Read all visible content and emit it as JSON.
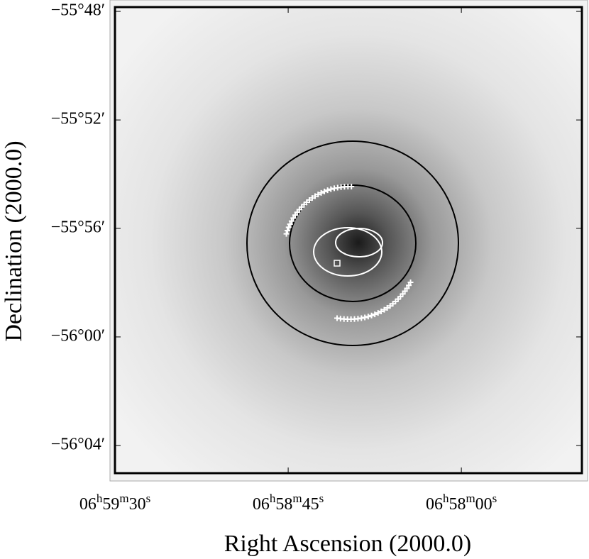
{
  "chart_data": {
    "type": "image",
    "xlabel": "Right Ascension (2000.0)",
    "ylabel": "Declination (2000.0)",
    "xlim": [
      25171.3,
      25047.2
    ],
    "ylim": [
      -56.0885,
      -55.793
    ],
    "xticks": [
      {
        "value": 25170,
        "label": "06h59m30s"
      },
      {
        "value": 25125,
        "label": "06h58m45s"
      },
      {
        "value": 25080,
        "label": "06h58m00s"
      }
    ],
    "yticks": [
      {
        "value": -55.8,
        "label": "−55°48′"
      },
      {
        "value": -55.8667,
        "label": "−55°52′"
      },
      {
        "value": -55.9333,
        "label": "−55°56′"
      },
      {
        "value": -56.0,
        "label": "−56°00′"
      },
      {
        "value": -56.0667,
        "label": "−56°04′"
      }
    ]
  }
}
